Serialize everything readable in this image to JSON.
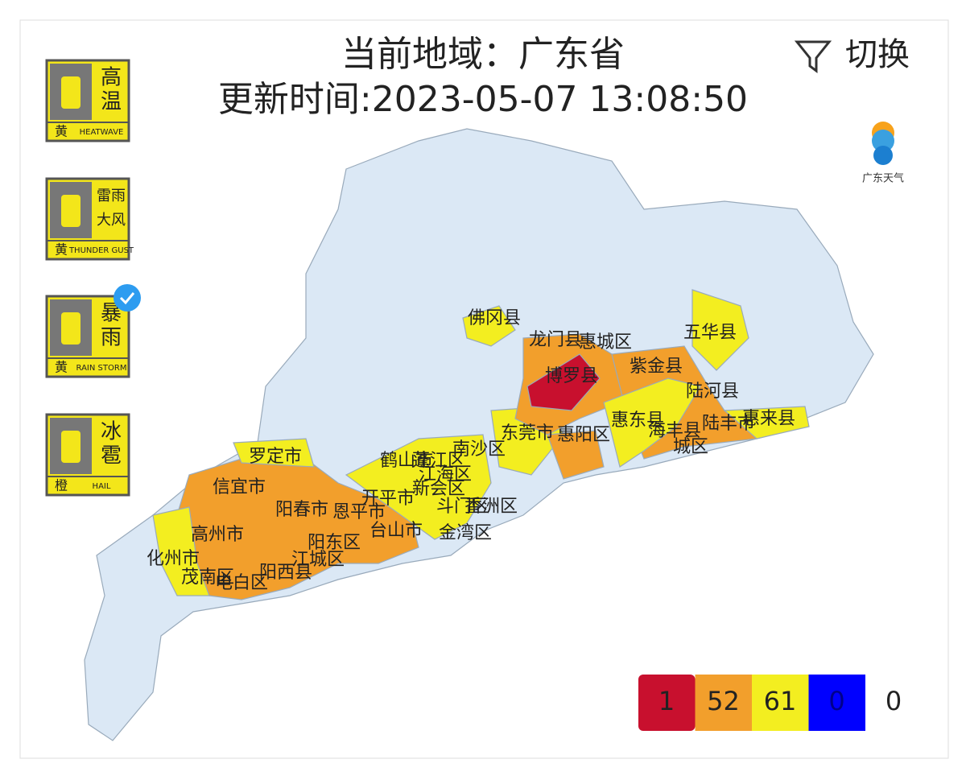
{
  "header": {
    "region": "当前地域：广东省",
    "update_time": "更新时间:2023-05-07 13:08:50",
    "switch": "切换",
    "logo_text": "广东天气"
  },
  "warnings": [
    {
      "lines": [
        "高",
        "温"
      ],
      "level": "黄",
      "english": "HEATWAVE"
    },
    {
      "lines": [
        "雷雨",
        "大风"
      ],
      "level": "黄",
      "english": "THUNDER GUST"
    },
    {
      "lines": [
        "暴",
        "雨"
      ],
      "level": "黄",
      "english": "RAIN STORM"
    },
    {
      "lines": [
        "冰",
        "雹"
      ],
      "level": "橙",
      "english": "HAIL"
    }
  ],
  "map_labels": [
    "佛冈县",
    "龙门县",
    "惠城区",
    "博罗县",
    "紫金县",
    "五华县",
    "陆河县",
    "惠东县",
    "海丰县",
    "陆丰市",
    "惠来县",
    "城区",
    "东莞市",
    "惠阳区",
    "南沙区",
    "罗定市",
    "信宜市",
    "鹤山市",
    "蓬江区",
    "江海区",
    "新会区",
    "开平市",
    "恩平市",
    "阳春市",
    "斗门区",
    "香洲区",
    "金湾区",
    "台山市",
    "高州市",
    "阳东区",
    "化州市",
    "江城区",
    "茂南区",
    "阳西县",
    "电白区"
  ],
  "legend": {
    "counts": [
      1,
      52,
      61,
      0
    ],
    "other": 0
  }
}
